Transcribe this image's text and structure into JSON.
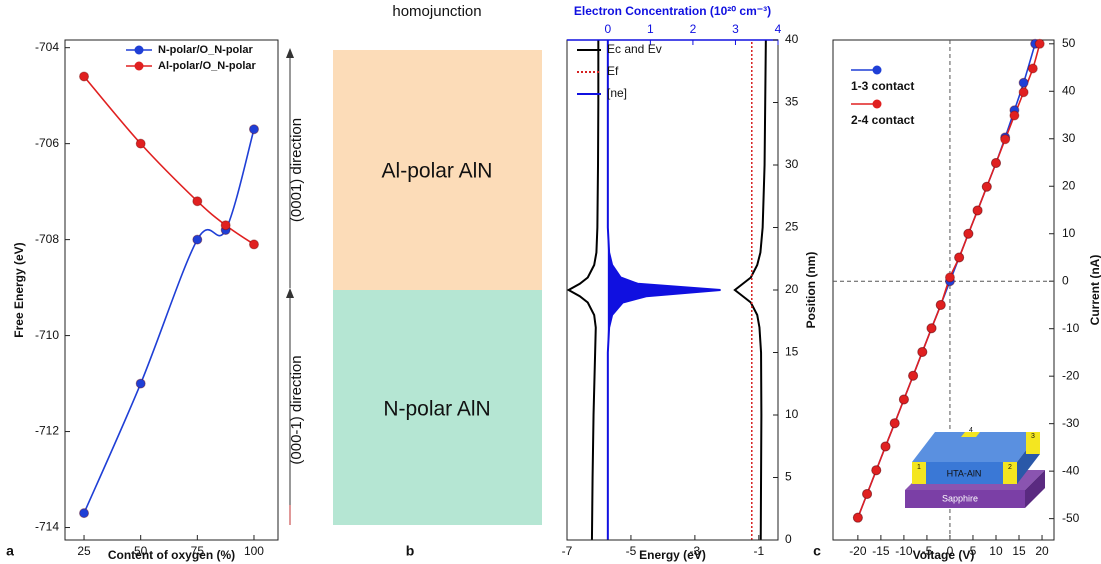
{
  "chart_data": [
    {
      "type": "line",
      "panel_label": "a",
      "x_label": "Content of oxygen (%)",
      "y_label": "Free Energy (eV)",
      "x": [
        25,
        50,
        75,
        87.5,
        100
      ],
      "series": [
        {
          "name": "N-polar/O_N-polar",
          "color": "#1f3fd6",
          "values": [
            -713.7,
            -711.0,
            -708.0,
            -707.8,
            -705.7
          ]
        },
        {
          "name": "Al-polar/O_N-polar",
          "color": "#e02020",
          "values": [
            -704.6,
            -706.0,
            -707.2,
            -707.7,
            -708.1
          ]
        }
      ],
      "xlim": [
        16.6,
        110.6
      ],
      "ylim": [
        -714.26,
        -703.84
      ],
      "xticks": [
        25,
        50,
        75,
        100
      ],
      "yticks": [
        -714,
        -712,
        -710,
        -708,
        -706,
        -704
      ],
      "legend": "upper right"
    },
    {
      "type": "profile",
      "x_label": "Energy (eV)",
      "x2_label": "Electron Concentration (10²⁰ cm⁻³)",
      "y_label": "Position (nm)",
      "y": [
        0,
        5,
        10,
        15,
        17,
        18,
        19,
        19.5,
        20,
        20.5,
        21,
        22,
        23,
        25,
        30,
        35,
        40
      ],
      "series": [
        {
          "name": "Ec and Ev",
          "color": "#000000",
          "values": [
            -6.22,
            -6.2,
            -6.17,
            -6.12,
            -6.1,
            -6.15,
            -6.35,
            -6.6,
            -6.95,
            -6.6,
            -6.35,
            -6.15,
            -6.08,
            -6.05,
            -6.03,
            -6.02,
            -6.02
          ]
        },
        {
          "color": "#000000",
          "values": [
            -0.94,
            -0.93,
            -0.92,
            -0.93,
            -0.98,
            -1.05,
            -1.25,
            -1.5,
            -1.75,
            -1.5,
            -1.25,
            -1.05,
            -0.95,
            -0.88,
            -0.82,
            -0.8,
            -0.78
          ]
        },
        {
          "name": "Ef",
          "color": "#d62020",
          "dashed": true,
          "values": [
            -1.22,
            -1.22,
            -1.22,
            -1.22,
            -1.22,
            -1.22,
            -1.22,
            -1.22,
            -1.22,
            -1.22,
            -1.22,
            -1.22,
            -1.22,
            -1.22,
            -1.22,
            -1.22,
            -1.22
          ]
        },
        {
          "name": "[ne]",
          "color": "#1010e0",
          "axis": "x2",
          "filled": true,
          "values": [
            0,
            0,
            0,
            0,
            0.03,
            0.1,
            0.35,
            0.9,
            2.65,
            0.7,
            0.3,
            0.1,
            0.03,
            0,
            0,
            0,
            0
          ]
        }
      ],
      "xlim": [
        -7,
        -0.4
      ],
      "x2lim": [
        -0.96,
        4
      ],
      "ylim": [
        0,
        40
      ],
      "xticks": [
        -7,
        -5,
        -3,
        -1
      ],
      "x2ticks": [
        0,
        1,
        2,
        3,
        4
      ],
      "yticks": [
        0,
        5,
        10,
        15,
        20,
        25,
        30,
        35,
        40
      ]
    },
    {
      "type": "line",
      "panel_label": "c",
      "x_label": "Voltage (V)",
      "y_label": "Current (nA)",
      "series": [
        {
          "name": "1-3 contact",
          "color": "#1f3fd6",
          "x": [
            -20,
            -18,
            -16,
            -14,
            -12,
            -10,
            -8,
            -6,
            -4,
            -2,
            0,
            2,
            4,
            6,
            8,
            10,
            12,
            14,
            16,
            18.5
          ],
          "values": [
            -49.8,
            -44.8,
            -39.8,
            -34.8,
            -29.9,
            -24.9,
            -19.9,
            -14.9,
            -9.9,
            -5.0,
            0.0,
            5.0,
            10.0,
            14.9,
            19.9,
            24.9,
            30.3,
            36.0,
            41.8,
            50.0
          ]
        },
        {
          "name": "2-4 contact",
          "color": "#e02020",
          "x": [
            -20,
            -18,
            -16,
            -14,
            -12,
            -10,
            -8,
            -6,
            -4,
            -2,
            0,
            2,
            4,
            6,
            8,
            10,
            12,
            14,
            16,
            18,
            19.5
          ],
          "values": [
            -49.8,
            -44.8,
            -39.8,
            -34.8,
            -29.9,
            -24.9,
            -19.9,
            -14.9,
            -9.9,
            -5.0,
            0.8,
            5.0,
            10.0,
            14.9,
            19.9,
            24.9,
            29.9,
            34.9,
            39.8,
            44.8,
            50.0
          ]
        }
      ],
      "xlim": [
        -25.4,
        22.6
      ],
      "ylim": [
        -54.5,
        50.8
      ],
      "xticks": [
        -20,
        -15,
        -10,
        -5,
        0,
        5,
        10,
        15,
        20
      ],
      "yticks": [
        -50,
        -40,
        -30,
        -20,
        -10,
        0,
        10,
        20,
        30,
        40,
        50
      ],
      "legend": "upper left",
      "zero_lines": true,
      "inset": {
        "layer": "HTA-AlN",
        "substrate": "Sapphire",
        "contacts": [
          "1",
          "2",
          "3",
          "4"
        ]
      }
    }
  ],
  "diagram": {
    "title": "homojunction",
    "regions": [
      "Al-polar AlN",
      "N-polar AlN"
    ],
    "directions": [
      "(0001) direction",
      "(000-1) direction"
    ],
    "panel_label": "b"
  }
}
